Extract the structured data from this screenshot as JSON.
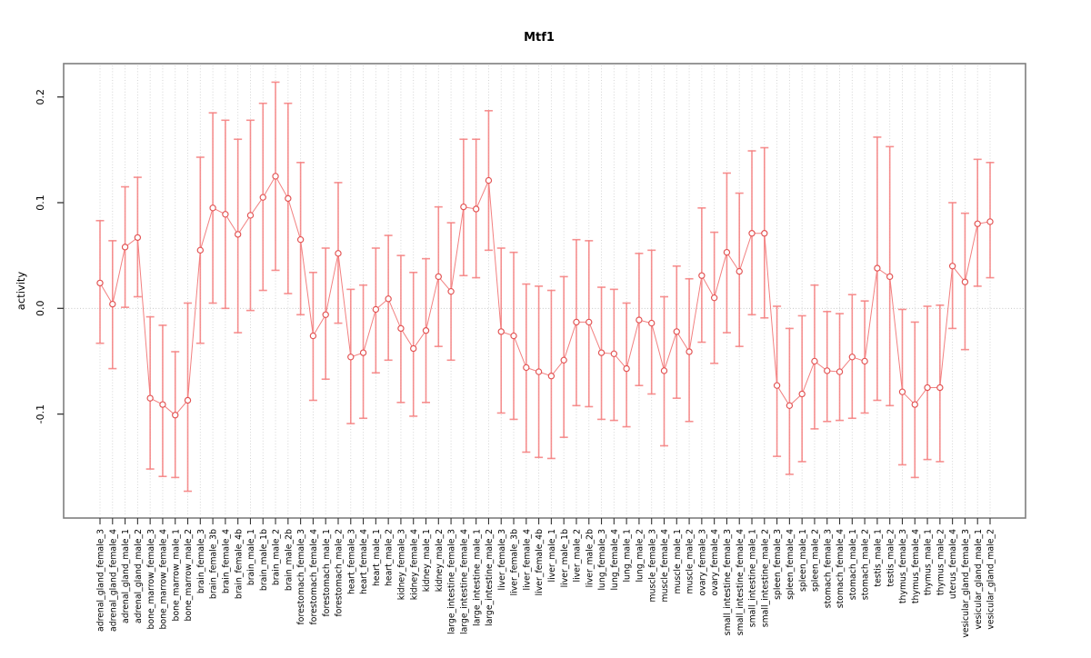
{
  "colors": {
    "errorbar": "#F47C7C",
    "connector_line": "#F06A6A",
    "point_stroke": "#E25252",
    "gridline": "#D0D0D0",
    "zero_line": "#BDBDBD",
    "plot_border": "#7F7F7F",
    "text": "#000000"
  },
  "chart_data": {
    "type": "errorbar-line",
    "title": "Mtf1",
    "xlabel": "",
    "ylabel": "activity",
    "ylim": [
      -0.198,
      0.232
    ],
    "yticks": [
      0.2,
      0.1,
      0.0,
      -0.1
    ],
    "ytick_labels": [
      "0.2",
      "0.1",
      "0.0",
      "-0.1"
    ],
    "grid": "vertical dotted gridline at every category; horizontal dotted line at y=0",
    "legend": "none",
    "categories": [
      "adrenal_gland_female_3",
      "adrenal_gland_female_4",
      "adrenal_gland_male_1",
      "adrenal_gland_male_2",
      "bone_marrow_female_3",
      "bone_marrow_female_4",
      "bone_marrow_male_1",
      "bone_marrow_male_2",
      "brain_female_3",
      "brain_female_3b",
      "brain_female_4",
      "brain_female_4b",
      "brain_male_1",
      "brain_male_1b",
      "brain_male_2",
      "brain_male_2b",
      "forestomach_female_3",
      "forestomach_female_4",
      "forestomach_male_1",
      "forestomach_male_2",
      "heart_female_3",
      "heart_female_4",
      "heart_male_1",
      "heart_male_2",
      "kidney_female_3",
      "kidney_female_4",
      "kidney_male_1",
      "kidney_male_2",
      "large_intestine_female_3",
      "large_intestine_female_4",
      "large_intestine_male_1",
      "large_intestine_male_2",
      "liver_female_3",
      "liver_female_3b",
      "liver_female_4",
      "liver_female_4b",
      "liver_male_1",
      "liver_male_1b",
      "liver_male_2",
      "liver_male_2b",
      "lung_female_3",
      "lung_female_4",
      "lung_male_1",
      "lung_male_2",
      "muscle_female_3",
      "muscle_female_4",
      "muscle_male_1",
      "muscle_male_2",
      "ovary_female_3",
      "ovary_female_4",
      "small_intestine_female_3",
      "small_intestine_female_4",
      "small_intestine_male_1",
      "small_intestine_male_2",
      "spleen_female_3",
      "spleen_female_4",
      "spleen_male_1",
      "spleen_male_2",
      "stomach_female_3",
      "stomach_female_4",
      "stomach_male_1",
      "stomach_male_2",
      "testis_male_1",
      "testis_male_2",
      "thymus_female_3",
      "thymus_female_4",
      "thymus_male_1",
      "thymus_male_2",
      "uterus_female_4",
      "vesicular_gland_female_3",
      "vesicular_gland_male_1",
      "vesicular_gland_male_2"
    ],
    "series": [
      {
        "name": "activity",
        "values": [
          0.024,
          0.004,
          0.058,
          0.067,
          -0.085,
          -0.091,
          -0.101,
          -0.087,
          0.055,
          0.095,
          0.089,
          0.07,
          0.088,
          0.105,
          0.125,
          0.104,
          0.065,
          -0.026,
          -0.006,
          0.052,
          -0.046,
          -0.042,
          -0.001,
          0.009,
          -0.019,
          -0.038,
          -0.021,
          0.03,
          0.016,
          0.096,
          0.094,
          0.121,
          -0.022,
          -0.026,
          -0.056,
          -0.06,
          -0.064,
          -0.049,
          -0.013,
          -0.013,
          -0.042,
          -0.043,
          -0.057,
          -0.011,
          -0.014,
          -0.059,
          -0.022,
          -0.041,
          0.031,
          0.01,
          0.053,
          0.035,
          0.071,
          0.071,
          -0.073,
          -0.092,
          -0.081,
          -0.05,
          -0.059,
          -0.06,
          -0.046,
          -0.05,
          0.038,
          0.03,
          -0.079,
          -0.091,
          -0.075,
          -0.075,
          0.04,
          0.025,
          0.08,
          0.082
        ],
        "lower": [
          -0.033,
          -0.057,
          0.001,
          0.011,
          -0.152,
          -0.159,
          -0.16,
          -0.173,
          -0.033,
          0.005,
          0.0,
          -0.023,
          -0.002,
          0.017,
          0.036,
          0.014,
          -0.006,
          -0.087,
          -0.067,
          -0.014,
          -0.109,
          -0.104,
          -0.061,
          -0.049,
          -0.089,
          -0.102,
          -0.089,
          -0.036,
          -0.049,
          0.031,
          0.029,
          0.055,
          -0.099,
          -0.105,
          -0.136,
          -0.141,
          -0.142,
          -0.122,
          -0.092,
          -0.093,
          -0.105,
          -0.106,
          -0.112,
          -0.073,
          -0.081,
          -0.13,
          -0.085,
          -0.107,
          -0.032,
          -0.052,
          -0.023,
          -0.036,
          -0.006,
          -0.009,
          -0.14,
          -0.157,
          -0.145,
          -0.114,
          -0.107,
          -0.106,
          -0.104,
          -0.099,
          -0.087,
          -0.092,
          -0.148,
          -0.16,
          -0.143,
          -0.145,
          -0.019,
          -0.039,
          0.021,
          0.029
        ],
        "upper": [
          0.083,
          0.064,
          0.115,
          0.124,
          -0.008,
          -0.016,
          -0.041,
          0.005,
          0.143,
          0.185,
          0.178,
          0.16,
          0.178,
          0.194,
          0.214,
          0.194,
          0.138,
          0.034,
          0.057,
          0.119,
          0.018,
          0.022,
          0.057,
          0.069,
          0.05,
          0.034,
          0.047,
          0.096,
          0.081,
          0.16,
          0.16,
          0.187,
          0.057,
          0.053,
          0.023,
          0.021,
          0.017,
          0.03,
          0.065,
          0.064,
          0.02,
          0.018,
          0.005,
          0.052,
          0.055,
          0.011,
          0.04,
          0.028,
          0.095,
          0.072,
          0.128,
          0.109,
          0.149,
          0.152,
          0.002,
          -0.019,
          -0.007,
          0.022,
          -0.003,
          -0.005,
          0.013,
          0.007,
          0.162,
          0.153,
          -0.001,
          -0.013,
          0.002,
          0.003,
          0.1,
          0.09,
          0.141,
          0.138
        ]
      }
    ]
  }
}
